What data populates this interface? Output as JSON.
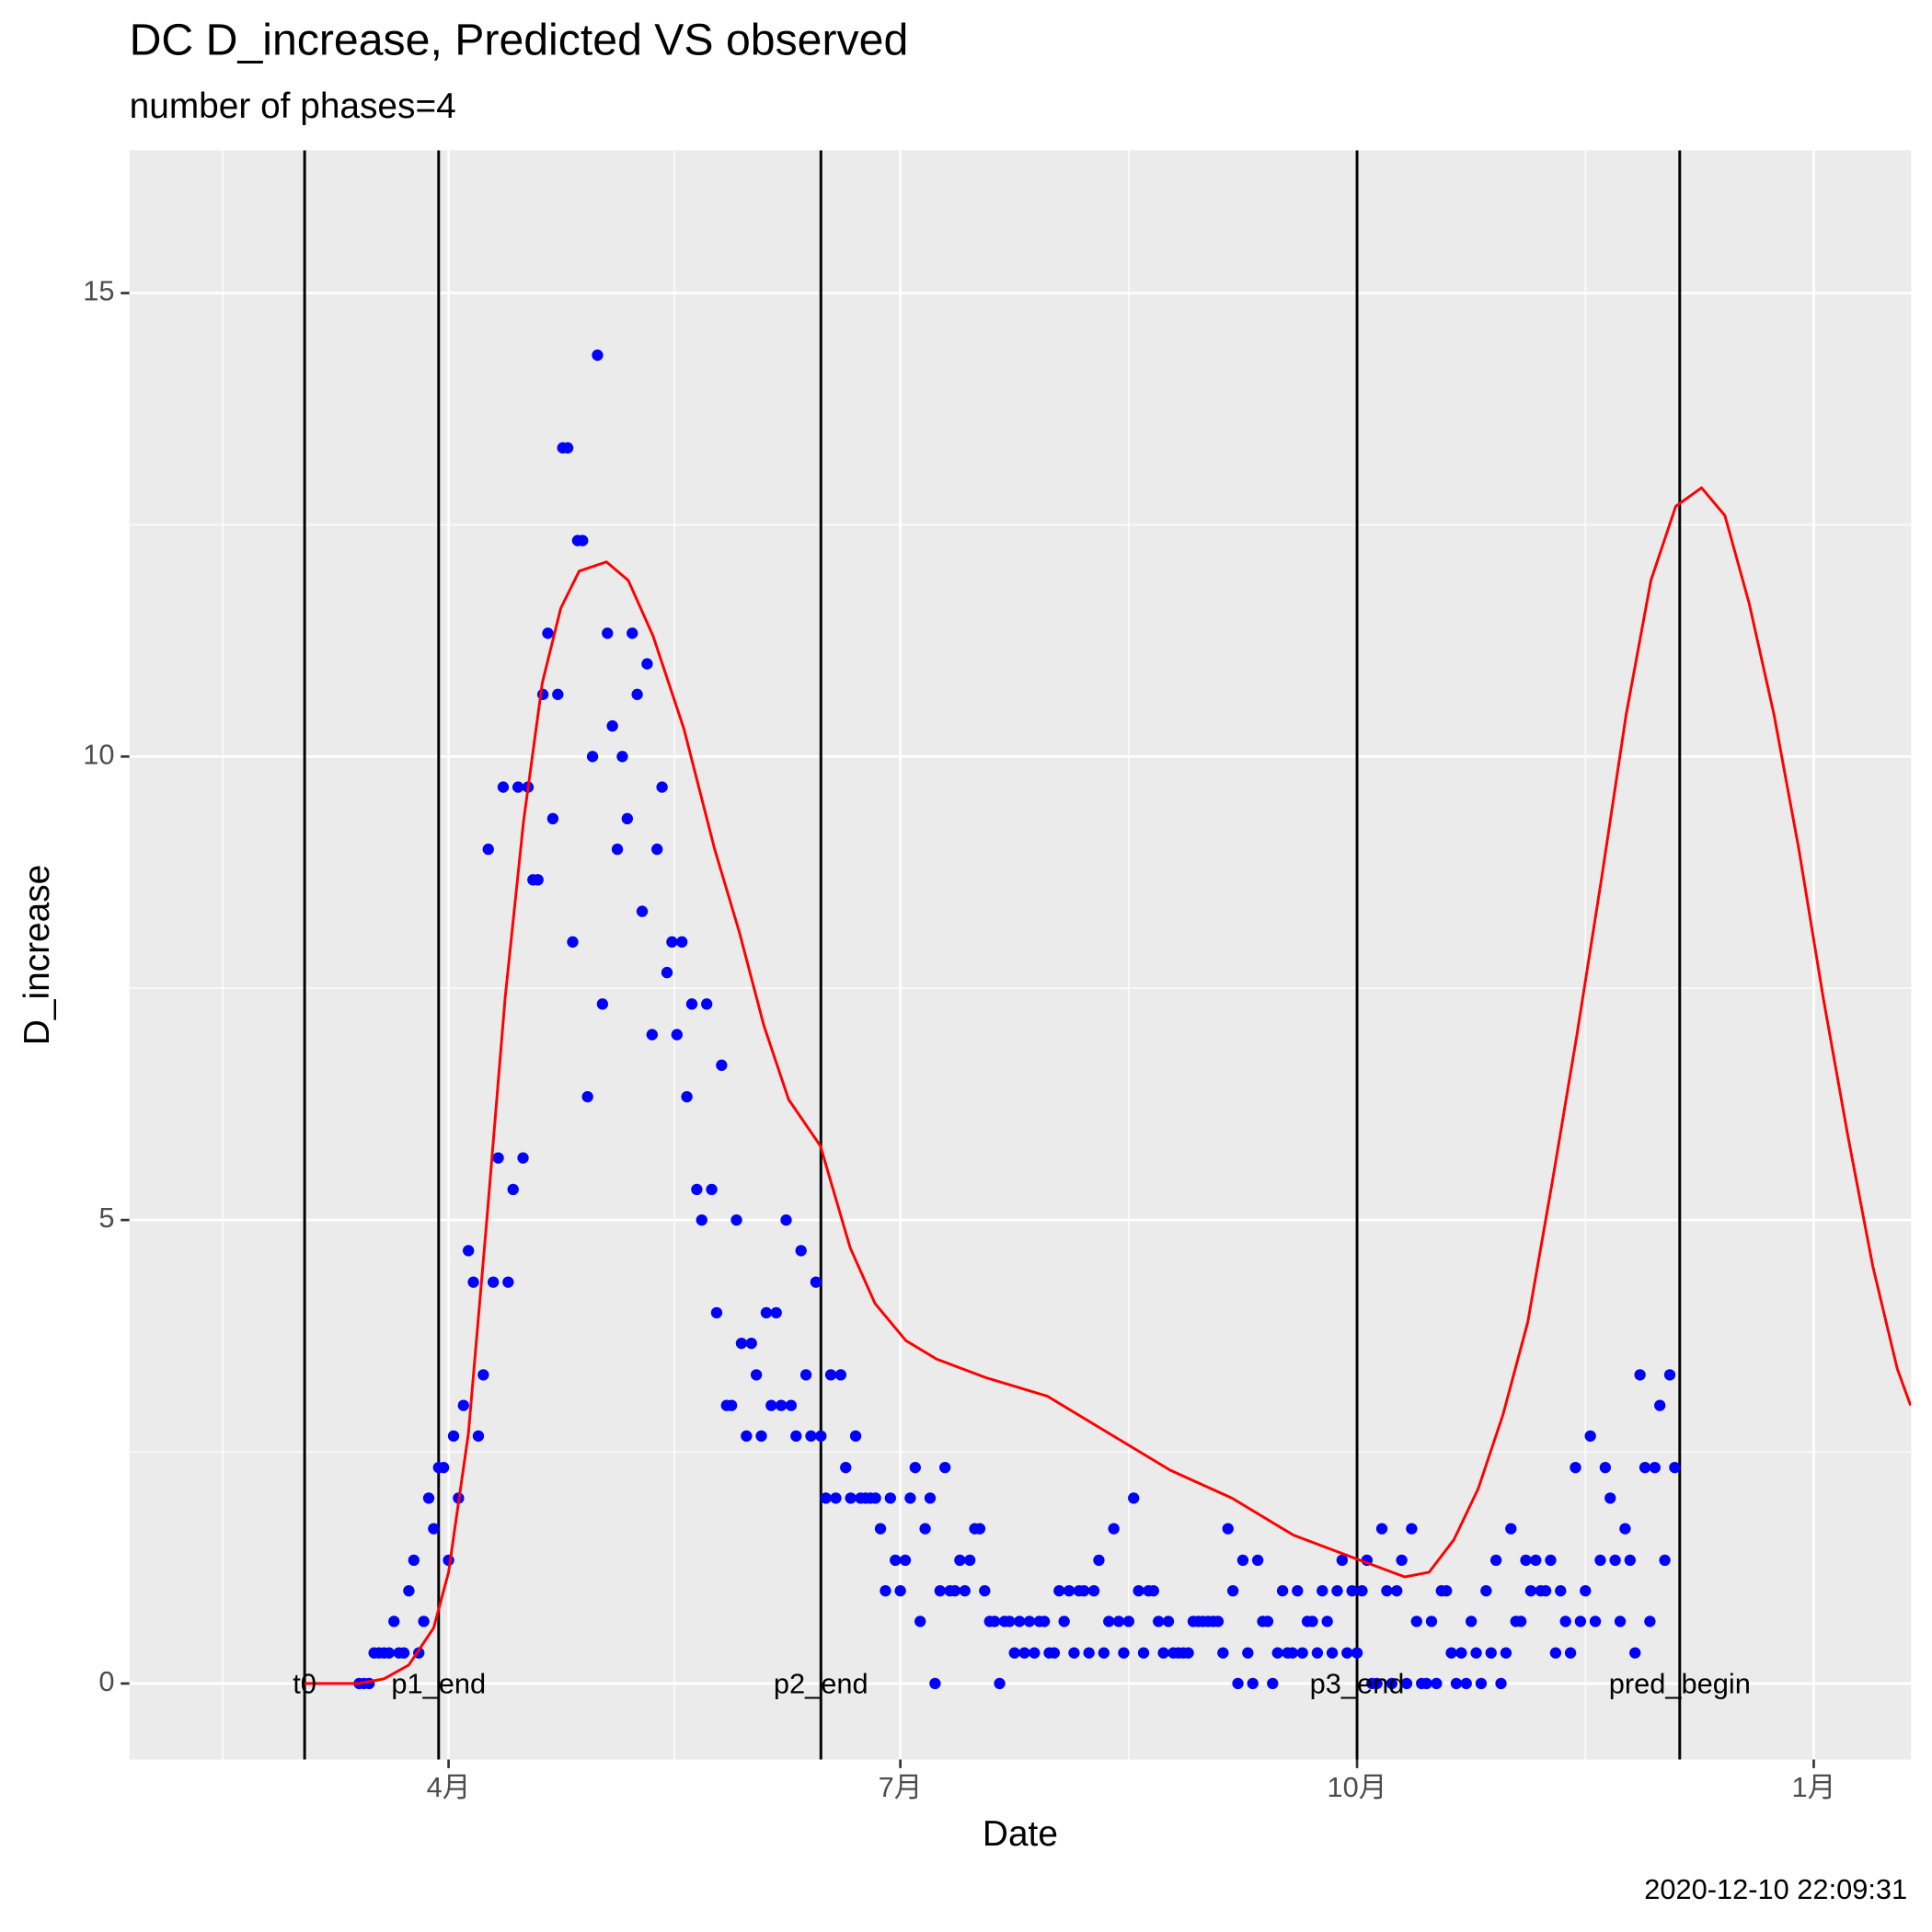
{
  "chart_data": {
    "type": "scatter",
    "title": "DC D_increase, Predicted VS observed",
    "subtitle": "number of phases=4",
    "x_label": "Date",
    "y_label": "D_increase",
    "caption": "2020-12-10 22:09:31",
    "xlim": [
      26.7,
      385.6
    ],
    "ylim": [
      -0.82,
      16.54
    ],
    "xticks": [
      {
        "value": 91,
        "label": "4月"
      },
      {
        "value": 182,
        "label": "7月"
      },
      {
        "value": 274,
        "label": "10月"
      },
      {
        "value": 366,
        "label": "1月"
      }
    ],
    "yticks": [
      0,
      5,
      10,
      15
    ],
    "grid": true,
    "vlines": [
      {
        "x": 62,
        "label": "t0"
      },
      {
        "x": 89,
        "label": "p1_end"
      },
      {
        "x": 166,
        "label": "p2_end"
      },
      {
        "x": 274,
        "label": "p3_end"
      },
      {
        "x": 339,
        "label": "pred_begin"
      }
    ],
    "series": [
      {
        "mark": "point",
        "color": "#0000ff",
        "x": [
          73,
          74,
          75,
          76,
          77,
          78,
          79,
          80,
          81,
          82,
          83,
          84,
          85,
          86,
          87,
          88,
          89,
          90,
          91,
          92,
          93,
          94,
          95,
          96,
          97,
          98,
          99,
          100,
          101,
          102,
          103,
          104,
          105,
          106,
          107,
          108,
          109,
          110,
          111,
          112,
          113,
          114,
          115,
          116,
          117,
          118,
          119,
          120,
          121,
          122,
          123,
          124,
          125,
          126,
          127,
          128,
          129,
          130,
          131,
          132,
          133,
          134,
          135,
          136,
          137,
          138,
          139,
          140,
          141,
          142,
          143,
          144,
          145,
          146,
          147,
          148,
          149,
          150,
          151,
          152,
          153,
          154,
          155,
          156,
          157,
          158,
          159,
          160,
          161,
          162,
          163,
          164,
          165,
          166,
          167,
          168,
          169,
          170,
          171,
          172,
          173,
          174,
          175,
          176,
          177,
          178,
          179,
          180,
          181,
          182,
          183,
          184,
          185,
          186,
          187,
          188,
          189,
          190,
          191,
          192,
          193,
          194,
          195,
          196,
          197,
          198,
          199,
          200,
          201,
          202,
          203,
          204,
          205,
          206,
          207,
          208,
          209,
          210,
          211,
          212,
          213,
          214,
          215,
          216,
          217,
          218,
          219,
          220,
          221,
          222,
          223,
          224,
          225,
          226,
          227,
          228,
          229,
          230,
          231,
          232,
          233,
          234,
          235,
          236,
          237,
          238,
          239,
          240,
          241,
          242,
          243,
          244,
          245,
          246,
          247,
          248,
          249,
          250,
          251,
          252,
          253,
          254,
          255,
          256,
          257,
          258,
          259,
          260,
          261,
          262,
          263,
          264,
          265,
          266,
          267,
          268,
          269,
          270,
          271,
          272,
          273,
          274,
          275,
          276,
          277,
          278,
          279,
          280,
          281,
          282,
          283,
          284,
          285,
          286,
          287,
          288,
          289,
          290,
          291,
          292,
          293,
          294,
          295,
          296,
          297,
          298,
          299,
          300,
          301,
          302,
          303,
          304,
          305,
          306,
          307,
          308,
          309,
          310,
          311,
          312,
          313,
          314,
          315,
          316,
          317,
          318,
          319,
          320,
          321,
          322,
          323,
          324,
          325,
          326,
          327,
          328,
          329,
          330,
          331,
          332,
          333,
          334,
          335,
          336,
          337,
          338
        ],
        "values": [
          0,
          0,
          0,
          0.33,
          0.33,
          0.33,
          0.33,
          0.67,
          0.33,
          0.33,
          1,
          1.33,
          0.33,
          0.67,
          2,
          1.67,
          2.33,
          2.33,
          1.33,
          2.67,
          2,
          3,
          4.67,
          4.33,
          2.67,
          3.33,
          9,
          4.33,
          5.67,
          9.67,
          4.33,
          5.33,
          9.67,
          5.67,
          9.67,
          8.67,
          8.67,
          10.67,
          11.33,
          9.33,
          10.67,
          13.33,
          13.33,
          8,
          12.33,
          12.33,
          6.33,
          10,
          14.33,
          7.33,
          11.33,
          10.33,
          9,
          10,
          9.33,
          11.33,
          10.67,
          8.33,
          11,
          7,
          9,
          9.67,
          7.67,
          8,
          7,
          8,
          6.33,
          7.33,
          5.33,
          5,
          7.33,
          5.33,
          4,
          6.67,
          3,
          3,
          5,
          3.67,
          2.67,
          3.67,
          3.33,
          2.67,
          4,
          3,
          4,
          3,
          5,
          3,
          2.67,
          4.67,
          3.33,
          2.67,
          4.33,
          2.67,
          2,
          3.33,
          2,
          3.33,
          2.33,
          2,
          2.67,
          2,
          2,
          2,
          2,
          1.67,
          1,
          2,
          1.33,
          1,
          1.33,
          2,
          2.33,
          0.67,
          1.67,
          2,
          0,
          1,
          2.33,
          1,
          1,
          1.33,
          1,
          1.33,
          1.67,
          1.67,
          1,
          0.67,
          0.67,
          0,
          0.67,
          0.67,
          0.33,
          0.67,
          0.33,
          0.67,
          0.33,
          0.67,
          0.67,
          0.33,
          0.33,
          1,
          0.67,
          1,
          0.33,
          1,
          1,
          0.33,
          1,
          1.33,
          0.33,
          0.67,
          1.67,
          0.67,
          0.33,
          0.67,
          2,
          1,
          0.33,
          1,
          1,
          0.67,
          0.33,
          0.67,
          0.33,
          0.33,
          0.33,
          0.33,
          0.67,
          0.67,
          0.67,
          0.67,
          0.67,
          0.67,
          0.33,
          1.67,
          1,
          0,
          1.33,
          0.33,
          0,
          1.33,
          0.67,
          0.67,
          0,
          0.33,
          1,
          0.33,
          0.33,
          1,
          0.33,
          0.67,
          0.67,
          0.33,
          1,
          0.67,
          0.33,
          1,
          1.33,
          0.33,
          1,
          0.33,
          1,
          1.33,
          0,
          0,
          1.67,
          1,
          0,
          1,
          1.33,
          0,
          1.67,
          0.67,
          0,
          0,
          0.67,
          0,
          1,
          1,
          0.33,
          0,
          0.33,
          0,
          0.67,
          0.33,
          0,
          1,
          0.33,
          1.33,
          0,
          0.33,
          1.67,
          0.67,
          0.67,
          1.33,
          1,
          1.33,
          1,
          1,
          1.33,
          0.33,
          1,
          0.67,
          0.33,
          2.33,
          0.67,
          1,
          2.67,
          0.67,
          1.33,
          2.33,
          2,
          1.33,
          0.67,
          1.67,
          1.33,
          0.33,
          3.33,
          2.33,
          0.67,
          2.33,
          3,
          1.33,
          3.33,
          2.33
        ]
      },
      {
        "mark": "line",
        "color": "#ff0000",
        "x": [
          62,
          73,
          78,
          83,
          88,
          91,
          95,
          98.7,
          102.4,
          106.1,
          109.9,
          113.6,
          117.3,
          122.8,
          127.2,
          132.2,
          138.4,
          144.6,
          149.6,
          154.5,
          159.5,
          165.9,
          171.9,
          176.9,
          183.1,
          189.3,
          199.2,
          211.6,
          224,
          236.4,
          248.8,
          261.2,
          273.6,
          283.6,
          288.5,
          293.5,
          298.4,
          303.4,
          308.4,
          313.3,
          318.3,
          323.3,
          328.2,
          333.2,
          338.2,
          343.4,
          348.1,
          353,
          358,
          363,
          367.9,
          372.9,
          377.9,
          382.8,
          385.5
        ],
        "values": [
          0,
          0,
          0.05,
          0.2,
          0.6,
          1.2,
          2.7,
          5,
          7.4,
          9.3,
          10.8,
          11.6,
          12,
          12.1,
          11.9,
          11.3,
          10.3,
          9,
          8.1,
          7.1,
          6.3,
          5.8,
          4.7,
          4.1,
          3.7,
          3.5,
          3.3,
          3.1,
          2.7,
          2.3,
          2,
          1.6,
          1.35,
          1.15,
          1.2,
          1.55,
          2.1,
          2.9,
          3.9,
          5.4,
          7,
          8.7,
          10.45,
          11.9,
          12.7,
          12.9,
          12.6,
          11.65,
          10.45,
          9,
          7.4,
          5.9,
          4.5,
          3.4,
          3
        ]
      }
    ]
  }
}
